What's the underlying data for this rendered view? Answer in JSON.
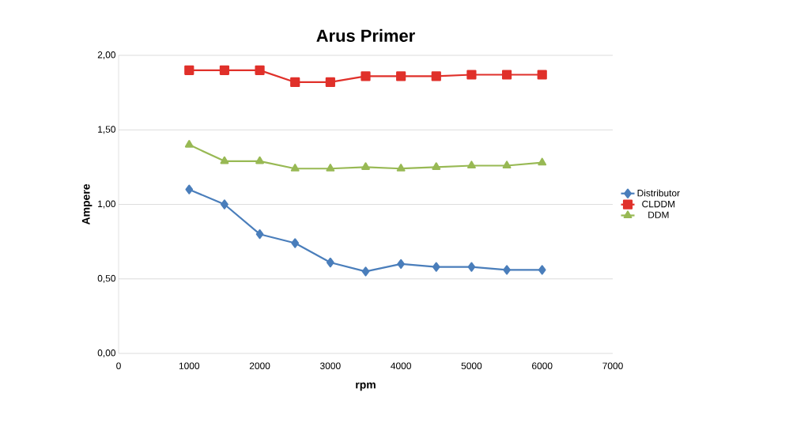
{
  "chart_data": {
    "type": "line",
    "title": "Arus Primer",
    "xlabel": "rpm",
    "ylabel": "Ampere",
    "x": [
      1000,
      1500,
      2000,
      2500,
      3000,
      3500,
      4000,
      4500,
      5000,
      5500,
      6000
    ],
    "series": [
      {
        "name": "Distributor",
        "color": "#4a7ebb",
        "marker": "diamond",
        "values": [
          1.1,
          1.0,
          0.8,
          0.74,
          0.61,
          0.55,
          0.6,
          0.58,
          0.58,
          0.56,
          0.56
        ]
      },
      {
        "name": "CLDDM",
        "color": "#e0302a",
        "marker": "square",
        "values": [
          1.9,
          1.9,
          1.9,
          1.82,
          1.82,
          1.86,
          1.86,
          1.86,
          1.87,
          1.87,
          1.87
        ]
      },
      {
        "name": "DDM",
        "color": "#98b954",
        "marker": "triangle",
        "values": [
          1.4,
          1.29,
          1.29,
          1.24,
          1.24,
          1.25,
          1.24,
          1.25,
          1.26,
          1.26,
          1.28
        ]
      }
    ],
    "xlim": [
      0,
      7000
    ],
    "xticks": [
      0,
      1000,
      2000,
      3000,
      4000,
      5000,
      6000,
      7000
    ],
    "ylim": [
      0,
      2
    ],
    "yticks": [
      {
        "value": 0,
        "label": "0,00"
      },
      {
        "value": 0.5,
        "label": "0,50"
      },
      {
        "value": 1,
        "label": "1,00"
      },
      {
        "value": 1.5,
        "label": "1,50"
      },
      {
        "value": 2,
        "label": "2,00"
      }
    ],
    "grid": "y",
    "legend": "right"
  }
}
